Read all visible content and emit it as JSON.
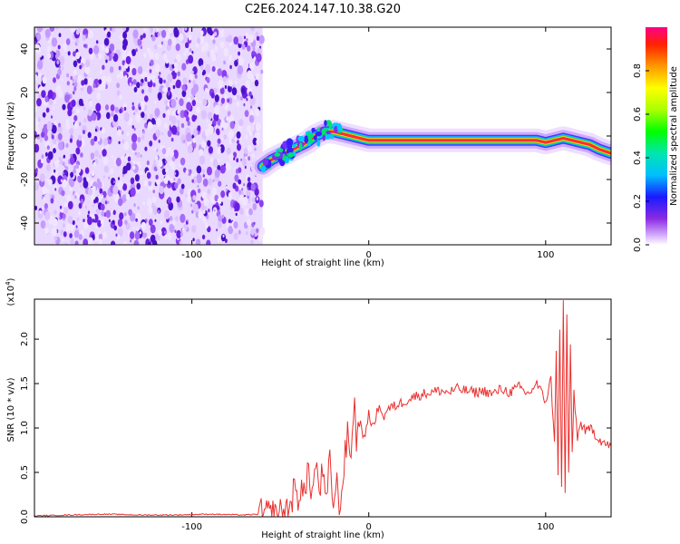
{
  "title": "C2E6.2024.147.10.38.G20",
  "chart_data": [
    {
      "type": "heatmap",
      "xlabel": "Height of straight line (km)",
      "ylabel": "Frequency (Hz)",
      "xlim": [
        -189,
        137
      ],
      "ylim": [
        -50,
        50
      ],
      "x_ticks": [
        -100,
        0,
        100
      ],
      "x_tick_labels": [
        "-100",
        "0",
        "100"
      ],
      "y_ticks": [
        -40,
        -20,
        0,
        20,
        40
      ],
      "y_tick_labels": [
        "-40",
        "-20",
        "0",
        "20",
        "40"
      ],
      "noise_region_x": [
        -189,
        -60
      ],
      "signal_track": [
        {
          "x": -60,
          "y": -14
        },
        {
          "x": -55,
          "y": -11
        },
        {
          "x": -50,
          "y": -9
        },
        {
          "x": -45,
          "y": -7
        },
        {
          "x": -40,
          "y": -5
        },
        {
          "x": -35,
          "y": -3
        },
        {
          "x": -30,
          "y": 0
        },
        {
          "x": -25,
          "y": 2
        },
        {
          "x": -20,
          "y": 2
        },
        {
          "x": -15,
          "y": 1
        },
        {
          "x": -10,
          "y": 0
        },
        {
          "x": -5,
          "y": -1
        },
        {
          "x": 0,
          "y": -2
        },
        {
          "x": 10,
          "y": -2
        },
        {
          "x": 20,
          "y": -2
        },
        {
          "x": 40,
          "y": -2
        },
        {
          "x": 60,
          "y": -2
        },
        {
          "x": 80,
          "y": -2
        },
        {
          "x": 95,
          "y": -2
        },
        {
          "x": 100,
          "y": -3
        },
        {
          "x": 105,
          "y": -2
        },
        {
          "x": 110,
          "y": -1
        },
        {
          "x": 115,
          "y": -2
        },
        {
          "x": 120,
          "y": -3
        },
        {
          "x": 125,
          "y": -4
        },
        {
          "x": 130,
          "y": -6
        },
        {
          "x": 137,
          "y": -8
        }
      ],
      "colorbar": {
        "label": "Normalized spectral amplitude",
        "range": [
          0,
          1
        ],
        "ticks": [
          0.0,
          0.2,
          0.4,
          0.6,
          0.8
        ],
        "tick_labels": [
          "0.0",
          "0.2",
          "0.4",
          "0.6",
          "0.8"
        ]
      },
      "colors": {
        "noise": "#7b2ff0",
        "peak": "#ff1e5a"
      }
    },
    {
      "type": "line",
      "xlabel": "Height of straight line (km)",
      "ylabel": "SNR (10 * v/v)",
      "y_multiplier": "(x10",
      "y_multiplier_exp": "4",
      "y_multiplier_close": ")",
      "xlim": [
        -189,
        137
      ],
      "ylim": [
        0,
        2.45
      ],
      "x_ticks": [
        -100,
        0,
        100
      ],
      "x_tick_labels": [
        "-100",
        "0",
        "100"
      ],
      "y_ticks": [
        0.0,
        0.5,
        1.0,
        1.5,
        2.0
      ],
      "y_tick_labels": [
        "0.0",
        "0.5",
        "1.0",
        "1.5",
        "2.0"
      ],
      "series": [
        {
          "color": "#e8312f",
          "x": [
            -189,
            -170,
            -150,
            -130,
            -110,
            -90,
            -70,
            -62,
            -56,
            -50,
            -45,
            -42,
            -40,
            -38,
            -36,
            -34,
            -32,
            -30,
            -28,
            -26,
            -24,
            -22,
            -20,
            -18,
            -16,
            -14,
            -12,
            -10,
            -8,
            -7,
            -6,
            -4,
            -2,
            0,
            2,
            4,
            6,
            8,
            10,
            15,
            20,
            25,
            30,
            35,
            40,
            45,
            50,
            55,
            60,
            65,
            70,
            75,
            80,
            85,
            90,
            95,
            100,
            103,
            105,
            106,
            107,
            108,
            109,
            110,
            111,
            112,
            113,
            114,
            115,
            116,
            118,
            120,
            123,
            126,
            129,
            132,
            135,
            137
          ],
          "y": [
            0.01,
            0.02,
            0.03,
            0.02,
            0.02,
            0.03,
            0.02,
            0.03,
            0.03,
            0.04,
            0.1,
            0.3,
            0.15,
            0.45,
            0.2,
            0.55,
            0.25,
            0.6,
            0.3,
            0.5,
            0.1,
            0.65,
            0.15,
            0.35,
            0.1,
            0.6,
            0.9,
            0.7,
            1.35,
            0.75,
            1.1,
            1.0,
            0.85,
            1.2,
            1.0,
            1.1,
            1.3,
            1.1,
            1.2,
            1.25,
            1.3,
            1.35,
            1.38,
            1.4,
            1.42,
            1.4,
            1.44,
            1.42,
            1.4,
            1.42,
            1.38,
            1.44,
            1.4,
            1.46,
            1.38,
            1.5,
            1.3,
            1.55,
            0.8,
            1.9,
            0.5,
            2.1,
            0.3,
            2.4,
            0.25,
            2.3,
            0.5,
            1.9,
            0.7,
            1.4,
            0.9,
            1.05,
            0.95,
            1.0,
            0.9,
            0.85,
            0.8,
            0.8
          ]
        }
      ]
    }
  ]
}
